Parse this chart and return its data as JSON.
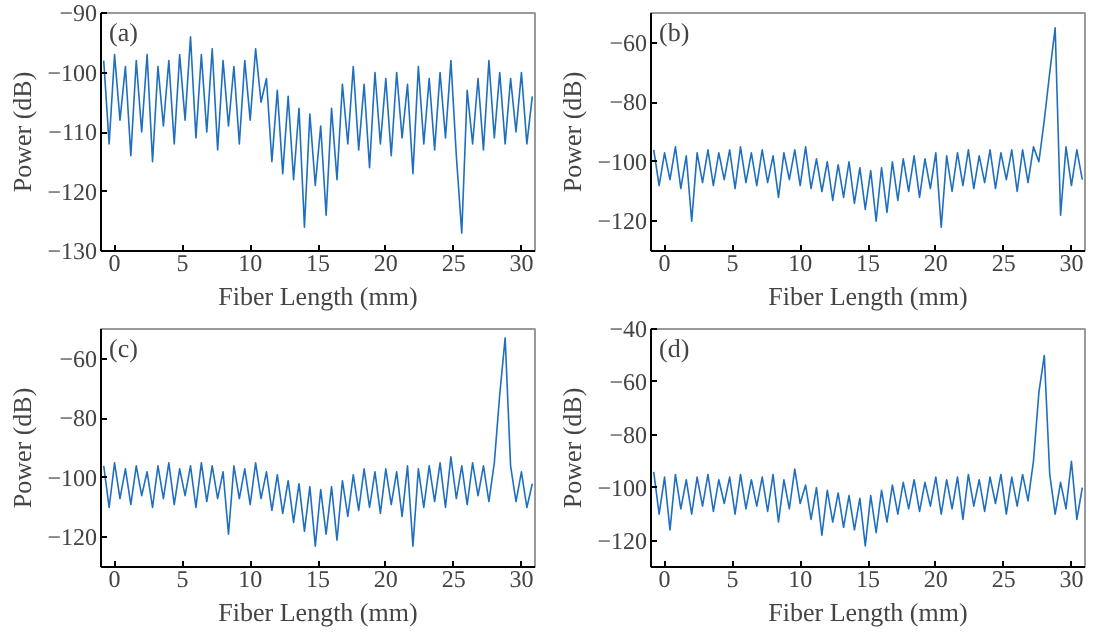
{
  "chart_data": [
    {
      "type": "line",
      "xlabel": "Fiber Length (mm)",
      "ylabel": "Power (dB)",
      "annotations": [
        "(a)"
      ],
      "xlim": [
        -1,
        31
      ],
      "ylim": [
        -130,
        -90
      ],
      "xticks": [
        0,
        5,
        10,
        15,
        20,
        25,
        30
      ],
      "yticks": [
        -130,
        -120,
        -110,
        -100,
        -90
      ],
      "x": [
        -0.8,
        -0.4,
        0,
        0.4,
        0.8,
        1.2,
        1.6,
        2,
        2.4,
        2.8,
        3.2,
        3.6,
        4,
        4.4,
        4.8,
        5.2,
        5.6,
        6,
        6.4,
        6.8,
        7.2,
        7.6,
        8,
        8.4,
        8.8,
        9.2,
        9.6,
        10,
        10.4,
        10.8,
        11.2,
        11.6,
        12,
        12.4,
        12.8,
        13.2,
        13.6,
        14,
        14.4,
        14.8,
        15.2,
        15.6,
        16,
        16.4,
        16.8,
        17.2,
        17.6,
        18,
        18.4,
        18.8,
        19.2,
        19.6,
        20,
        20.4,
        20.8,
        21.2,
        21.6,
        22,
        22.4,
        22.8,
        23.2,
        23.6,
        24,
        24.4,
        24.8,
        25.2,
        25.6,
        26,
        26.4,
        26.8,
        27.2,
        27.6,
        28,
        28.4,
        28.8,
        29.2,
        29.6,
        30,
        30.4,
        30.8
      ],
      "series": [
        {
          "color": "#1f6fc0",
          "values": [
            -98,
            -112,
            -97,
            -108,
            -99,
            -114,
            -98,
            -110,
            -97,
            -115,
            -99,
            -109,
            -98,
            -112,
            -97,
            -108,
            -94,
            -111,
            -97,
            -110,
            -96,
            -113,
            -98,
            -109,
            -99,
            -112,
            -98,
            -108,
            -96,
            -105,
            -101,
            -115,
            -103,
            -117,
            -104,
            -118,
            -106,
            -126,
            -107,
            -119,
            -109,
            -124,
            -106,
            -118,
            -102,
            -112,
            -99,
            -113,
            -102,
            -116,
            -100,
            -112,
            -101,
            -114,
            -100,
            -111,
            -102,
            -117,
            -99,
            -112,
            -101,
            -113,
            -100,
            -111,
            -98,
            -114,
            -127,
            -103,
            -112,
            -101,
            -113,
            -98,
            -111,
            -100,
            -112,
            -101,
            -110,
            -100,
            -112,
            -104
          ]
        }
      ]
    },
    {
      "type": "line",
      "xlabel": "Fiber Length (mm)",
      "ylabel": "Power (dB)",
      "annotations": [
        "(b)"
      ],
      "xlim": [
        -1,
        31
      ],
      "ylim": [
        -130,
        -50
      ],
      "xticks": [
        0,
        5,
        10,
        15,
        20,
        25,
        30
      ],
      "yticks": [
        -120,
        -100,
        -80,
        -60
      ],
      "x": [
        -0.8,
        -0.4,
        0,
        0.4,
        0.8,
        1.2,
        1.6,
        2,
        2.4,
        2.8,
        3.2,
        3.6,
        4,
        4.4,
        4.8,
        5.2,
        5.6,
        6,
        6.4,
        6.8,
        7.2,
        7.6,
        8,
        8.4,
        8.8,
        9.2,
        9.6,
        10,
        10.4,
        10.8,
        11.2,
        11.6,
        12,
        12.4,
        12.8,
        13.2,
        13.6,
        14,
        14.4,
        14.8,
        15.2,
        15.6,
        16,
        16.4,
        16.8,
        17.2,
        17.6,
        18,
        18.4,
        18.8,
        19.2,
        19.6,
        20,
        20.4,
        20.8,
        21.2,
        21.6,
        22,
        22.4,
        22.8,
        23.2,
        23.6,
        24,
        24.4,
        24.8,
        25.2,
        25.6,
        26,
        26.4,
        26.8,
        27.2,
        27.6,
        28,
        28.4,
        28.8,
        29.2,
        29.6,
        30,
        30.4,
        30.8
      ],
      "series": [
        {
          "color": "#1f6fc0",
          "values": [
            -96,
            -108,
            -97,
            -106,
            -95,
            -109,
            -98,
            -120,
            -97,
            -107,
            -96,
            -108,
            -97,
            -106,
            -96,
            -109,
            -95,
            -107,
            -97,
            -108,
            -96,
            -107,
            -98,
            -112,
            -97,
            -106,
            -96,
            -108,
            -95,
            -109,
            -99,
            -110,
            -100,
            -113,
            -101,
            -112,
            -100,
            -114,
            -102,
            -116,
            -103,
            -120,
            -102,
            -117,
            -100,
            -113,
            -99,
            -110,
            -98,
            -112,
            -99,
            -109,
            -97,
            -122,
            -98,
            -110,
            -97,
            -108,
            -96,
            -109,
            -98,
            -107,
            -96,
            -109,
            -97,
            -106,
            -96,
            -110,
            -96,
            -107,
            -95,
            -100,
            -86,
            -70,
            -55,
            -118,
            -95,
            -108,
            -96,
            -106
          ]
        }
      ]
    },
    {
      "type": "line",
      "xlabel": "Fiber Length (mm)",
      "ylabel": "Power (dB)",
      "annotations": [
        "(c)"
      ],
      "xlim": [
        -1,
        31
      ],
      "ylim": [
        -130,
        -50
      ],
      "xticks": [
        0,
        5,
        10,
        15,
        20,
        25,
        30
      ],
      "yticks": [
        -120,
        -100,
        -80,
        -60
      ],
      "x": [
        -0.8,
        -0.4,
        0,
        0.4,
        0.8,
        1.2,
        1.6,
        2,
        2.4,
        2.8,
        3.2,
        3.6,
        4,
        4.4,
        4.8,
        5.2,
        5.6,
        6,
        6.4,
        6.8,
        7.2,
        7.6,
        8,
        8.4,
        8.8,
        9.2,
        9.6,
        10,
        10.4,
        10.8,
        11.2,
        11.6,
        12,
        12.4,
        12.8,
        13.2,
        13.6,
        14,
        14.4,
        14.8,
        15.2,
        15.6,
        16,
        16.4,
        16.8,
        17.2,
        17.6,
        18,
        18.4,
        18.8,
        19.2,
        19.6,
        20,
        20.4,
        20.8,
        21.2,
        21.6,
        22,
        22.4,
        22.8,
        23.2,
        23.6,
        24,
        24.4,
        24.8,
        25.2,
        25.6,
        26,
        26.4,
        26.8,
        27.2,
        27.6,
        28,
        28.4,
        28.8,
        29.2,
        29.6,
        30,
        30.4,
        30.8
      ],
      "series": [
        {
          "color": "#1f6fc0",
          "values": [
            -96,
            -110,
            -95,
            -107,
            -97,
            -109,
            -96,
            -106,
            -98,
            -110,
            -96,
            -107,
            -95,
            -109,
            -97,
            -106,
            -96,
            -110,
            -95,
            -108,
            -96,
            -107,
            -98,
            -119,
            -96,
            -107,
            -97,
            -109,
            -95,
            -107,
            -98,
            -111,
            -99,
            -112,
            -101,
            -115,
            -102,
            -118,
            -103,
            -123,
            -104,
            -119,
            -103,
            -121,
            -101,
            -113,
            -99,
            -111,
            -97,
            -110,
            -98,
            -112,
            -97,
            -109,
            -98,
            -113,
            -96,
            -123,
            -97,
            -110,
            -96,
            -108,
            -95,
            -110,
            -93,
            -107,
            -96,
            -109,
            -95,
            -106,
            -96,
            -108,
            -95,
            -72,
            -53,
            -96,
            -108,
            -98,
            -110,
            -102
          ]
        }
      ]
    },
    {
      "type": "line",
      "xlabel": "Fiber Length (mm)",
      "ylabel": "Power (dB)",
      "annotations": [
        "(d)"
      ],
      "xlim": [
        -1,
        31
      ],
      "ylim": [
        -130,
        -40
      ],
      "xticks": [
        0,
        5,
        10,
        15,
        20,
        25,
        30
      ],
      "yticks": [
        -120,
        -100,
        -80,
        -60,
        -40
      ],
      "x": [
        -0.8,
        -0.4,
        0,
        0.4,
        0.8,
        1.2,
        1.6,
        2,
        2.4,
        2.8,
        3.2,
        3.6,
        4,
        4.4,
        4.8,
        5.2,
        5.6,
        6,
        6.4,
        6.8,
        7.2,
        7.6,
        8,
        8.4,
        8.8,
        9.2,
        9.6,
        10,
        10.4,
        10.8,
        11.2,
        11.6,
        12,
        12.4,
        12.8,
        13.2,
        13.6,
        14,
        14.4,
        14.8,
        15.2,
        15.6,
        16,
        16.4,
        16.8,
        17.2,
        17.6,
        18,
        18.4,
        18.8,
        19.2,
        19.6,
        20,
        20.4,
        20.8,
        21.2,
        21.6,
        22,
        22.4,
        22.8,
        23.2,
        23.6,
        24,
        24.4,
        24.8,
        25.2,
        25.6,
        26,
        26.4,
        26.8,
        27.2,
        27.6,
        28,
        28.4,
        28.8,
        29.2,
        29.6,
        30,
        30.4,
        30.8
      ],
      "series": [
        {
          "color": "#1f6fc0",
          "values": [
            -94,
            -110,
            -96,
            -116,
            -95,
            -108,
            -97,
            -110,
            -96,
            -107,
            -95,
            -109,
            -97,
            -106,
            -96,
            -110,
            -95,
            -108,
            -97,
            -107,
            -96,
            -109,
            -95,
            -113,
            -97,
            -108,
            -93,
            -106,
            -99,
            -112,
            -100,
            -118,
            -101,
            -113,
            -102,
            -115,
            -103,
            -116,
            -104,
            -122,
            -103,
            -117,
            -101,
            -113,
            -99,
            -110,
            -98,
            -108,
            -97,
            -109,
            -98,
            -107,
            -96,
            -110,
            -97,
            -108,
            -96,
            -112,
            -95,
            -107,
            -97,
            -109,
            -96,
            -106,
            -95,
            -110,
            -96,
            -107,
            -95,
            -105,
            -90,
            -64,
            -50,
            -95,
            -110,
            -98,
            -108,
            -90,
            -112,
            -100
          ]
        }
      ]
    }
  ]
}
